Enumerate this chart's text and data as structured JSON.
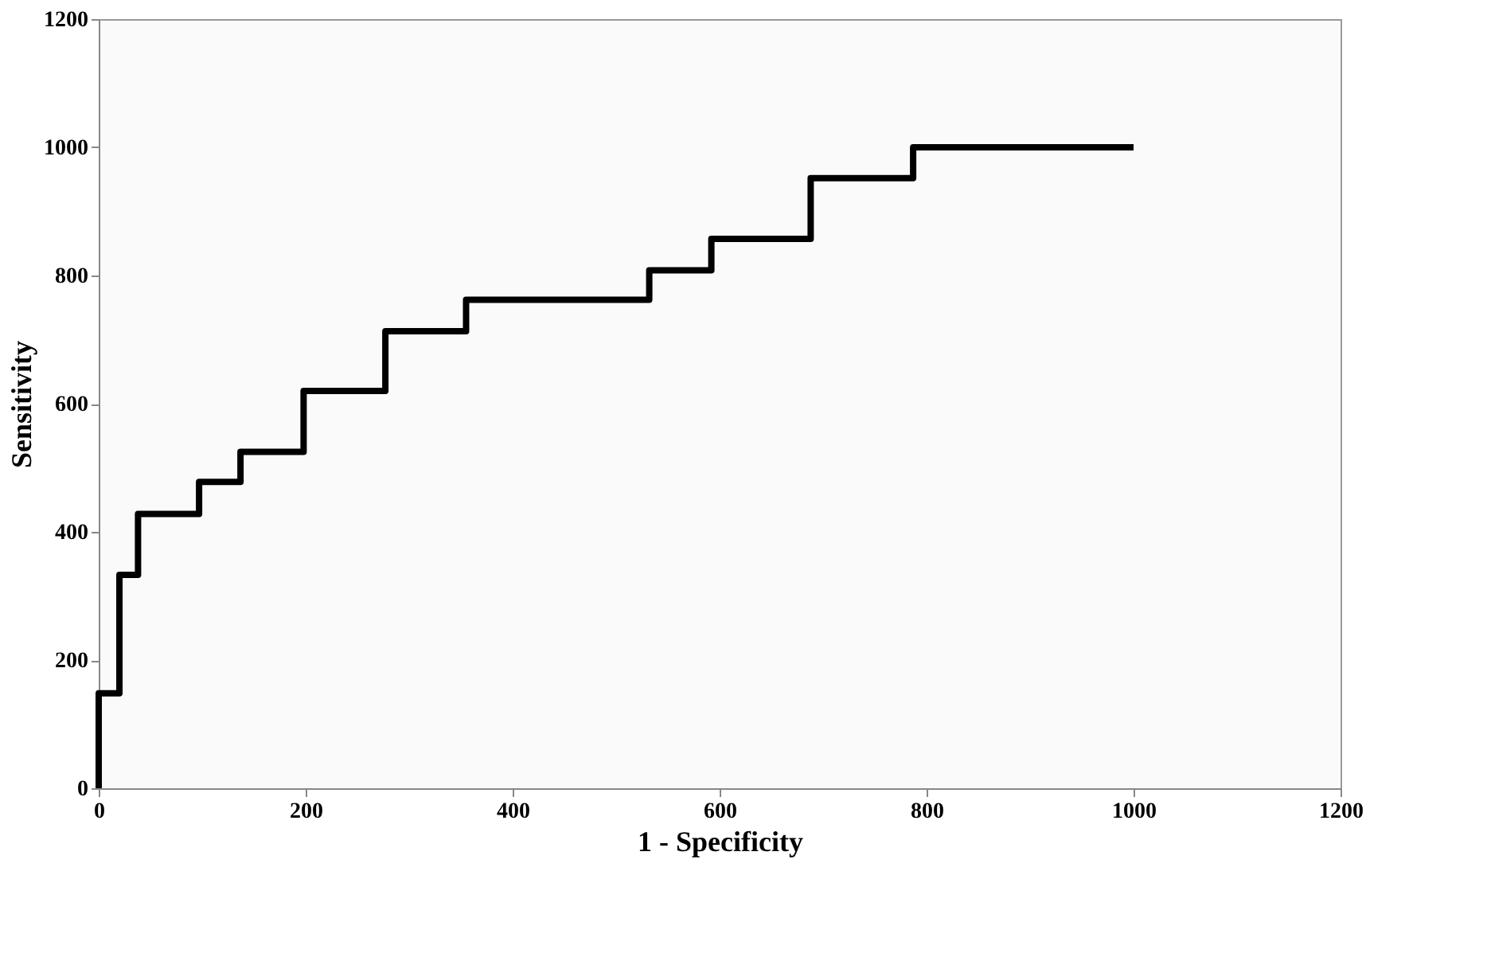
{
  "chart_data": {
    "type": "step",
    "xlabel": "1 - Specificity",
    "ylabel": "Sensitivity",
    "series": [
      {
        "color": "#000000",
        "x": [
          0,
          0,
          20,
          38,
          97,
          137,
          198,
          277,
          355,
          532,
          592,
          688,
          787,
          1000
        ],
        "values": [
          0,
          148,
          333,
          428,
          478,
          525,
          620,
          713,
          762,
          808,
          857,
          952,
          1000,
          1000
        ]
      }
    ],
    "xlim": [
      0,
      1200
    ],
    "xticks": [
      0,
      200,
      400,
      600,
      800,
      1000,
      1200
    ],
    "ylim": [
      0,
      1200
    ],
    "yticks": [
      0,
      200,
      400,
      600,
      800,
      1000,
      1200
    ],
    "grid": false,
    "marker": "none",
    "line_style": "solid"
  }
}
